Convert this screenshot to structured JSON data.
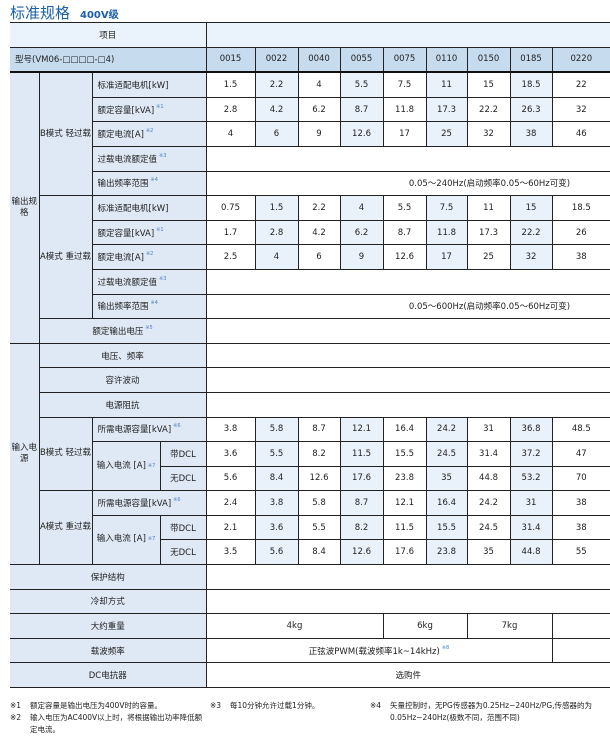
{
  "title": "标准规格",
  "subtitle": "400V级",
  "header": {
    "item_label": "项目",
    "model_label": "型号(VM06-□□□□-□4)",
    "models": [
      "0015",
      "0022",
      "0040",
      "0055",
      "0075",
      "0110",
      "0150",
      "0185",
      "0220"
    ]
  },
  "output": {
    "group_label": "输出规格",
    "b_mode": {
      "label": "B模式 轻过载",
      "rows": [
        {
          "label": "标准适配电机[kW]",
          "note": "",
          "values": [
            "1.5",
            "2.2",
            "4",
            "5.5",
            "7.5",
            "11",
            "15",
            "18.5",
            "22"
          ]
        },
        {
          "label": "额定容量[kVA]",
          "note": "※1",
          "values": [
            "2.8",
            "4.2",
            "6.2",
            "8.7",
            "11.8",
            "17.3",
            "22.2",
            "26.3",
            "32"
          ]
        },
        {
          "label": "额定电流[A]",
          "note": "※2",
          "values": [
            "4",
            "6",
            "9",
            "12.6",
            "17",
            "25",
            "32",
            "38",
            "46"
          ]
        },
        {
          "label": "过载电流额定值",
          "note": "※3",
          "value": ""
        },
        {
          "label": "输出频率范围",
          "note": "※4",
          "value": "0.05～240Hz(启动频率0.05～60Hz可变)"
        }
      ]
    },
    "a_mode": {
      "label": "A模式 重过载",
      "rows": [
        {
          "label": "标准适配电机[kW]",
          "note": "",
          "values": [
            "0.75",
            "1.5",
            "2.2",
            "4",
            "5.5",
            "7.5",
            "11",
            "15",
            "18.5"
          ]
        },
        {
          "label": "额定容量[kVA]",
          "note": "※1",
          "values": [
            "1.7",
            "2.8",
            "4.2",
            "6.2",
            "8.7",
            "11.8",
            "17.3",
            "22.2",
            "26"
          ]
        },
        {
          "label": "额定电流[A]",
          "note": "※2",
          "values": [
            "2.5",
            "4",
            "6",
            "9",
            "12.6",
            "17",
            "25",
            "32",
            "38"
          ]
        },
        {
          "label": "过载电流额定值",
          "note": "※3",
          "value": ""
        },
        {
          "label": "输出频率范围",
          "note": "※4",
          "value": "0.05～600Hz(启动频率0.05～60Hz可变)"
        }
      ]
    },
    "rated_voltage": {
      "label": "额定输出电压",
      "note": "※5",
      "value": ""
    }
  },
  "input": {
    "group_label": "输入电源",
    "common": [
      {
        "label": "电压、频率",
        "value": ""
      },
      {
        "label": "容许波动",
        "value": ""
      },
      {
        "label": "电源阻抗",
        "value": ""
      }
    ],
    "modes": [
      {
        "label": "B模式 轻过载",
        "capacity": {
          "label": "所需电源容量[kVA]",
          "note": "※6",
          "values": [
            "3.8",
            "5.8",
            "8.7",
            "12.1",
            "16.4",
            "24.2",
            "31",
            "36.8",
            "48.5"
          ]
        },
        "current_label": "输入电流 [A]",
        "current_note": "※7",
        "with_dcl": {
          "label": "带DCL",
          "values": [
            "3.6",
            "5.5",
            "8.2",
            "11.5",
            "15.5",
            "24.5",
            "31.4",
            "37.2",
            "47"
          ]
        },
        "without_dcl": {
          "label": "无DCL",
          "values": [
            "5.6",
            "8.4",
            "12.6",
            "17.6",
            "23.8",
            "35",
            "44.8",
            "53.2",
            "70"
          ]
        }
      },
      {
        "label": "A模式 重过载",
        "capacity": {
          "label": "所需电源容量[kVA]",
          "note": "※6",
          "values": [
            "2.4",
            "3.8",
            "5.8",
            "8.7",
            "12.1",
            "16.4",
            "24.2",
            "31",
            "38"
          ]
        },
        "current_label": "输入电流 [A]",
        "current_note": "※7",
        "with_dcl": {
          "label": "带DCL",
          "values": [
            "2.1",
            "3.6",
            "5.5",
            "8.2",
            "11.5",
            "15.5",
            "24.5",
            "31.4",
            "38"
          ]
        },
        "without_dcl": {
          "label": "无DCL",
          "values": [
            "3.5",
            "5.6",
            "8.4",
            "12.6",
            "17.6",
            "23.8",
            "35",
            "44.8",
            "55"
          ]
        }
      }
    ]
  },
  "bottom": {
    "protection": {
      "label": "保护结构",
      "value": ""
    },
    "cooling": {
      "label": "冷却方式",
      "value": ""
    },
    "weight": {
      "label": "大约重量",
      "values": [
        "4kg",
        "6kg",
        "7kg",
        ""
      ]
    },
    "carrier": {
      "label": "载波频率",
      "value": "正弦波PWM(载波频率1k~14kHz)",
      "note": "※8",
      "extra": ""
    },
    "dc_reactor": {
      "label": "DC电抗器",
      "value": "选购件"
    }
  },
  "footnotes": [
    {
      "mark": "※1",
      "text": "额定容量是输出电压为400V时的容量。"
    },
    {
      "mark": "※2",
      "text": "输入电压为AC400V以上时，将根据输出功率降低额定电流。"
    },
    {
      "mark": "※3",
      "text": "每10分钟允许过载1分钟。"
    },
    {
      "mark": "※4",
      "text": "矢量控制时，无PG传感器为0.25Hz~240Hz/PG,传感器的为0.05Hz~240Hz(极数不同，范围不同)"
    }
  ]
}
